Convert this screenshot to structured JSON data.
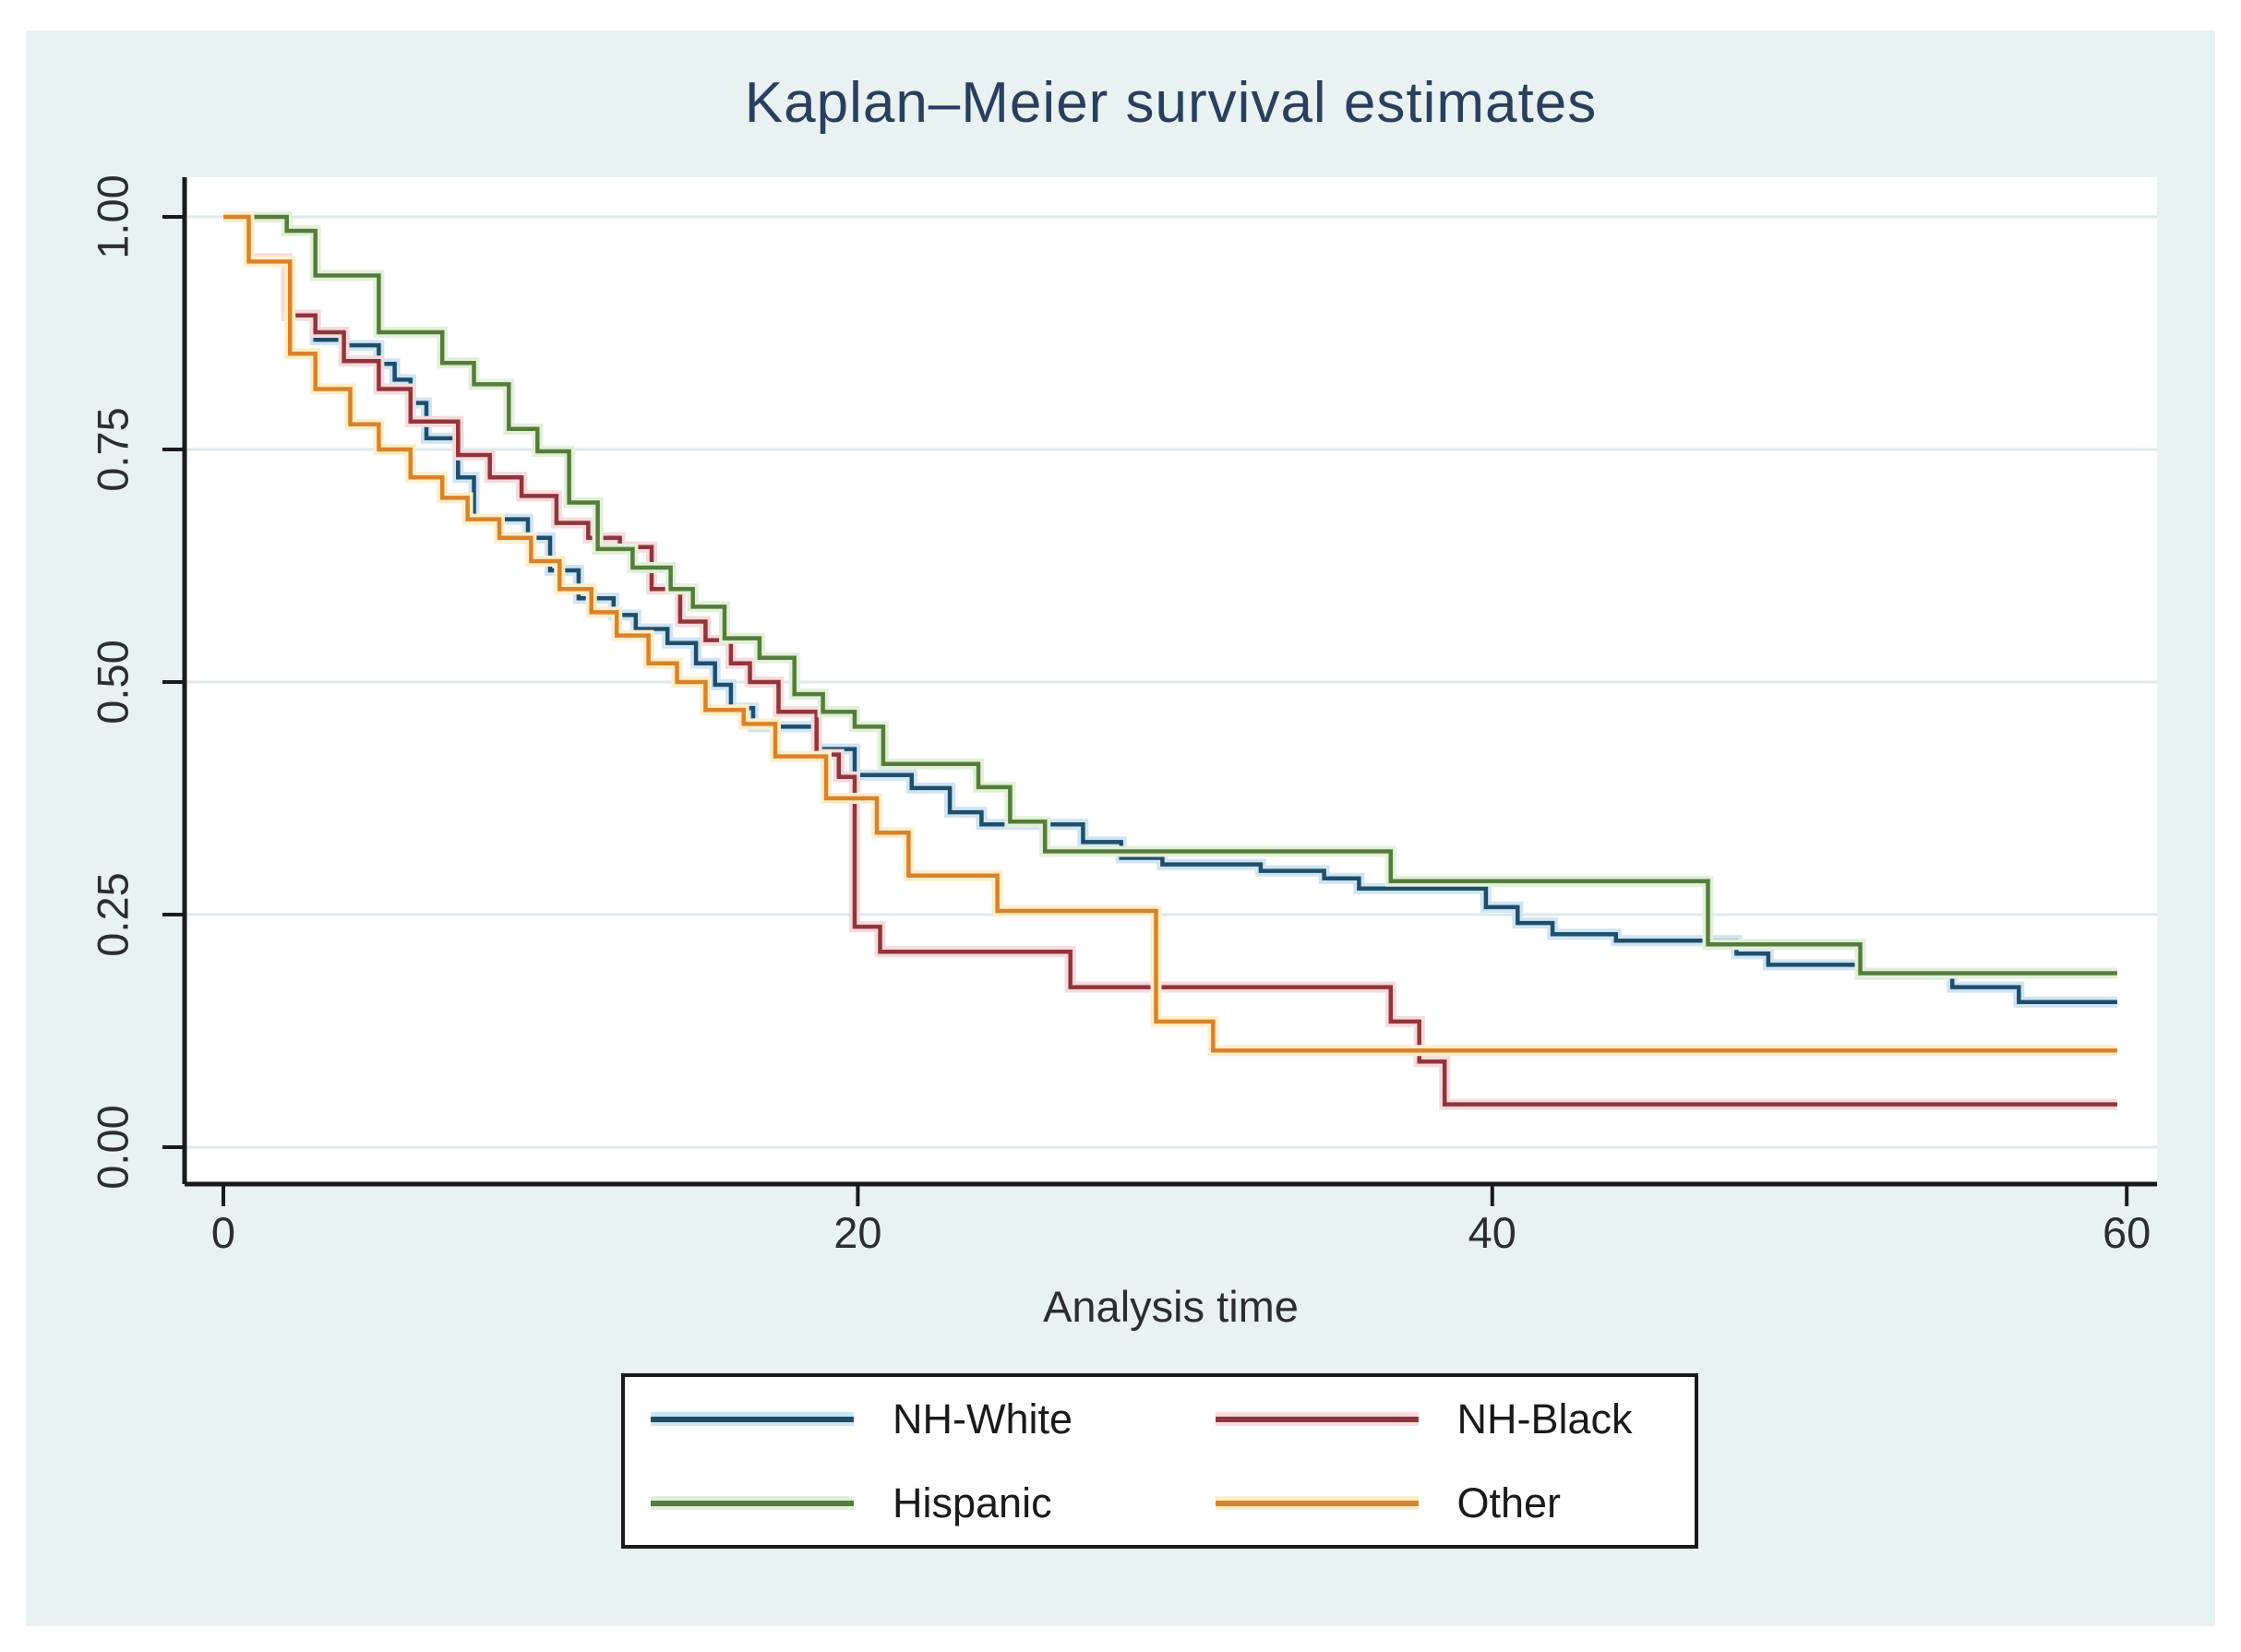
{
  "page": {
    "background": "#ffffff",
    "canvas_background": "#e9f2f2",
    "plot_background": "#ffffff"
  },
  "title": {
    "text": "Kaplan–Meier survival estimates",
    "color": "#2a3f5e"
  },
  "axes": {
    "x": {
      "label": "Analysis time",
      "tick_labels": [
        "0",
        "20",
        "40",
        "60"
      ],
      "tick_values": [
        0,
        20,
        40,
        60
      ]
    },
    "y": {
      "tick_labels": [
        "0.00",
        "0.25",
        "0.50",
        "0.75",
        "1.00"
      ],
      "tick_values": [
        0,
        0.25,
        0.5,
        0.75,
        1
      ]
    },
    "axis_color": "#1a1a1a",
    "tick_label_color": "#2d2d2d",
    "grid_color": "#dde9ec"
  },
  "legend": {
    "background": "#ffffff",
    "border_color": "#1a1a1a",
    "items": [
      {
        "label": "NH-White",
        "series": 0
      },
      {
        "label": "NH-Black",
        "series": 1
      },
      {
        "label": "Hispanic",
        "series": 2
      },
      {
        "label": "Other",
        "series": 3
      }
    ]
  },
  "chart_data": {
    "type": "line",
    "subtype": "kaplan-meier-step",
    "title": "Kaplan–Meier survival estimates",
    "xlabel": "Analysis time",
    "ylabel": "",
    "xlim": [
      0,
      60
    ],
    "ylim": [
      0,
      1
    ],
    "grid": "horizontal-only",
    "legend_position": "bottom-center",
    "curve_end_time": 59.7,
    "series": [
      {
        "name": "NH-White",
        "color": "#1f4e6a",
        "halo": "#cfe4f4",
        "points": [
          [
            0,
            1.0
          ],
          [
            0.8,
            0.955
          ],
          [
            2.0,
            0.894
          ],
          [
            2.9,
            0.868
          ],
          [
            3.8,
            0.862
          ],
          [
            4.9,
            0.842
          ],
          [
            5.4,
            0.825
          ],
          [
            5.9,
            0.8
          ],
          [
            6.4,
            0.762
          ],
          [
            7.4,
            0.72
          ],
          [
            7.9,
            0.675
          ],
          [
            9.6,
            0.655
          ],
          [
            10.3,
            0.62
          ],
          [
            11.2,
            0.59
          ],
          [
            12.3,
            0.572
          ],
          [
            13.0,
            0.557
          ],
          [
            14.0,
            0.542
          ],
          [
            14.9,
            0.52
          ],
          [
            15.5,
            0.497
          ],
          [
            16.0,
            0.472
          ],
          [
            16.7,
            0.452
          ],
          [
            18.7,
            0.428
          ],
          [
            19.9,
            0.4
          ],
          [
            21.7,
            0.386
          ],
          [
            22.9,
            0.36
          ],
          [
            23.9,
            0.347
          ],
          [
            27.1,
            0.328
          ],
          [
            28.3,
            0.311
          ],
          [
            29.6,
            0.304
          ],
          [
            32.7,
            0.297
          ],
          [
            34.7,
            0.289
          ],
          [
            35.8,
            0.278
          ],
          [
            39.8,
            0.258
          ],
          [
            40.8,
            0.241
          ],
          [
            41.9,
            0.229
          ],
          [
            43.9,
            0.222
          ],
          [
            47.7,
            0.208
          ],
          [
            48.7,
            0.196
          ],
          [
            51.6,
            0.186
          ],
          [
            54.5,
            0.172
          ],
          [
            56.6,
            0.156
          ]
        ]
      },
      {
        "name": "NH-Black",
        "color": "#90353b",
        "halo": "#f6dadc",
        "points": [
          [
            0,
            1.0
          ],
          [
            0.8,
            0.955
          ],
          [
            2.0,
            0.894
          ],
          [
            2.9,
            0.876
          ],
          [
            3.8,
            0.845
          ],
          [
            4.9,
            0.815
          ],
          [
            5.9,
            0.78
          ],
          [
            7.4,
            0.744
          ],
          [
            8.4,
            0.72
          ],
          [
            9.4,
            0.7
          ],
          [
            10.5,
            0.671
          ],
          [
            11.5,
            0.655
          ],
          [
            12.5,
            0.645
          ],
          [
            13.5,
            0.6
          ],
          [
            14.4,
            0.565
          ],
          [
            15.2,
            0.545
          ],
          [
            16.0,
            0.52
          ],
          [
            16.6,
            0.5
          ],
          [
            17.5,
            0.468
          ],
          [
            18.7,
            0.422
          ],
          [
            19.4,
            0.398
          ],
          [
            19.9,
            0.237
          ],
          [
            20.7,
            0.21
          ],
          [
            26.7,
            0.172
          ],
          [
            36.8,
            0.135
          ],
          [
            37.7,
            0.092
          ],
          [
            38.5,
            0.046
          ]
        ]
      },
      {
        "name": "Hispanic",
        "color": "#567c3c",
        "halo": "#e2f0d9",
        "points": [
          [
            0,
            1.0
          ],
          [
            2.0,
            0.985
          ],
          [
            2.9,
            0.937
          ],
          [
            4.9,
            0.876
          ],
          [
            6.9,
            0.843
          ],
          [
            7.9,
            0.82
          ],
          [
            9.0,
            0.772
          ],
          [
            9.9,
            0.748
          ],
          [
            10.9,
            0.693
          ],
          [
            11.8,
            0.643
          ],
          [
            12.9,
            0.623
          ],
          [
            14.1,
            0.6
          ],
          [
            14.8,
            0.581
          ],
          [
            15.8,
            0.547
          ],
          [
            16.9,
            0.526
          ],
          [
            18.0,
            0.487
          ],
          [
            18.9,
            0.468
          ],
          [
            19.9,
            0.452
          ],
          [
            20.8,
            0.412
          ],
          [
            23.8,
            0.387
          ],
          [
            24.8,
            0.35
          ],
          [
            25.9,
            0.318
          ],
          [
            36.8,
            0.286
          ],
          [
            46.8,
            0.218
          ],
          [
            51.6,
            0.187
          ]
        ]
      },
      {
        "name": "Other",
        "color": "#d9822b",
        "halo": "#fdeec9",
        "points": [
          [
            0,
            1.0
          ],
          [
            0.8,
            0.952
          ],
          [
            2.1,
            0.853
          ],
          [
            2.9,
            0.815
          ],
          [
            4.0,
            0.777
          ],
          [
            4.9,
            0.75
          ],
          [
            5.9,
            0.72
          ],
          [
            6.9,
            0.698
          ],
          [
            7.7,
            0.675
          ],
          [
            8.7,
            0.655
          ],
          [
            9.7,
            0.63
          ],
          [
            10.6,
            0.6
          ],
          [
            11.6,
            0.575
          ],
          [
            12.4,
            0.55
          ],
          [
            13.4,
            0.52
          ],
          [
            14.3,
            0.5
          ],
          [
            15.2,
            0.47
          ],
          [
            16.4,
            0.455
          ],
          [
            17.4,
            0.42
          ],
          [
            19.0,
            0.375
          ],
          [
            20.6,
            0.338
          ],
          [
            21.6,
            0.292
          ],
          [
            24.4,
            0.254
          ],
          [
            29.4,
            0.135
          ],
          [
            31.2,
            0.104
          ]
        ]
      }
    ]
  }
}
